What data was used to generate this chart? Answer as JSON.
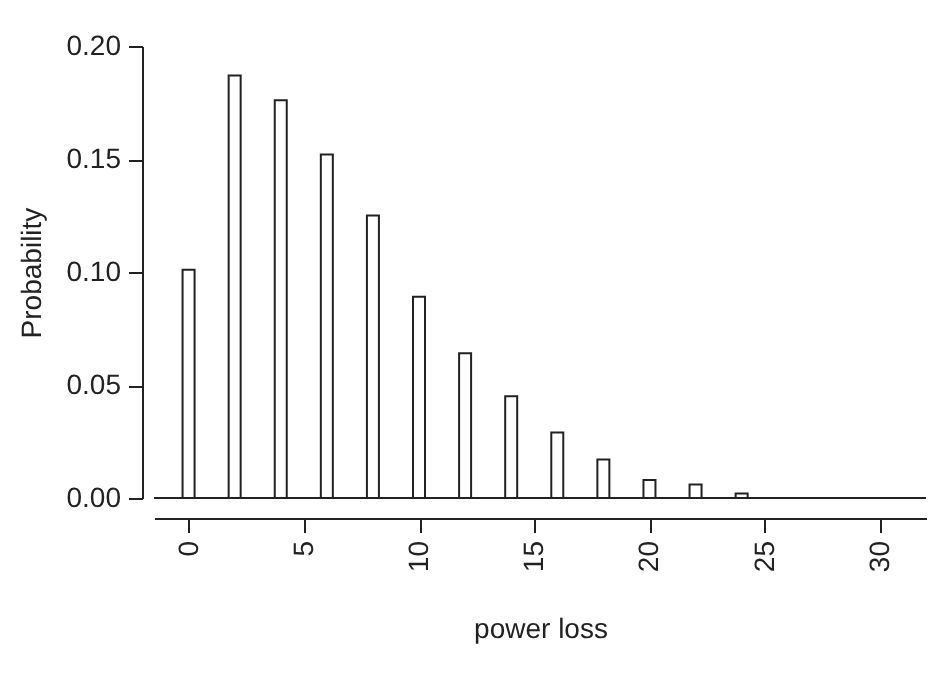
{
  "chart_data": {
    "type": "bar",
    "xlabel": "power loss",
    "ylabel": "Probability",
    "x": [
      0,
      2,
      4,
      6,
      8,
      10,
      12,
      14,
      16,
      18,
      20,
      22,
      24
    ],
    "values": [
      0.101,
      0.187,
      0.176,
      0.152,
      0.125,
      0.089,
      0.064,
      0.045,
      0.029,
      0.017,
      0.008,
      0.006,
      0.002
    ],
    "color": "#ffffff",
    "xlim": [
      -1.5,
      32
    ],
    "xticks": [
      0,
      5,
      10,
      15,
      20,
      25,
      30
    ],
    "ylim": [
      0,
      0.2
    ],
    "yticks": [
      {
        "value": 0,
        "label": "0.00"
      },
      {
        "value": 0.05,
        "label": "0.05"
      },
      {
        "value": 0.1,
        "label": "0.10"
      },
      {
        "value": 0.15,
        "label": "0.15"
      },
      {
        "value": 0.2,
        "label": "0.20"
      }
    ],
    "ref_lines": [
      {
        "axis": "y",
        "value": 0
      }
    ],
    "grid": false
  }
}
